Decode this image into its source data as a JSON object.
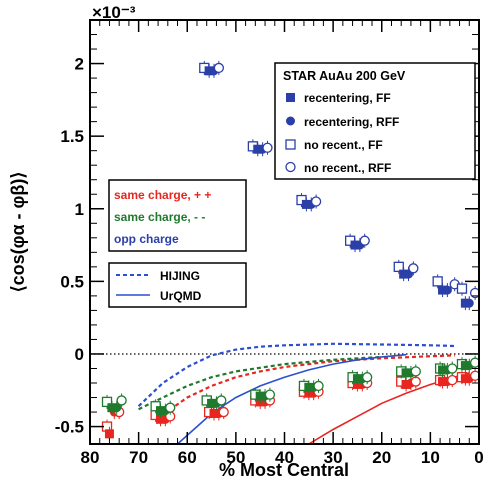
{
  "chart_data": {
    "type": "scatter",
    "title": "",
    "xlabel": "% Most Central",
    "ylabel": "⟨cos(φα - φβ)⟩",
    "y_multiplier": "×10⁻³",
    "xlim": [
      80,
      0
    ],
    "ylim": [
      -0.62,
      2.3
    ],
    "x_ticks": [
      80,
      70,
      60,
      50,
      40,
      30,
      20,
      10,
      0
    ],
    "y_ticks": [
      -0.5,
      0,
      0.5,
      1,
      1.5,
      2
    ],
    "x_tick_labels": [
      "80",
      "70",
      "60",
      "50",
      "40",
      "30",
      "20",
      "10",
      "0"
    ],
    "y_tick_labels": [
      "-0.5",
      "0",
      "0.5",
      "1",
      "1.5",
      "2"
    ],
    "zero_line": true,
    "legend_box_1": {
      "title": "STAR  AuAu 200 GeV",
      "entries": [
        "recentering, FF",
        "recentering, RFF",
        "no recent., FF",
        "no recent., RFF"
      ]
    },
    "legend_box_2": {
      "entries": [
        "same charge, + +",
        "same charge, - -",
        "opp charge"
      ]
    },
    "legend_box_3": {
      "entries": [
        "HIJING",
        "UrQMD"
      ]
    },
    "colors": {
      "same_pp": "#e8261f",
      "same_mm": "#1f7a2e",
      "opp": "#2b3fa8",
      "hijing": "#2b4fd0",
      "urqmd": "#2b4fd0"
    },
    "series": [
      {
        "name": "opp charge",
        "points": [
          {
            "x": 56.5,
            "y": 1.97,
            "marker": "square-open"
          },
          {
            "x": 55.5,
            "y": 1.95,
            "marker": "square-filled"
          },
          {
            "x": 54.5,
            "y": 1.95,
            "marker": "circle-filled"
          },
          {
            "x": 53.5,
            "y": 1.97,
            "marker": "circle-open"
          },
          {
            "x": 46.5,
            "y": 1.43,
            "marker": "square-open"
          },
          {
            "x": 45.5,
            "y": 1.41,
            "marker": "square-filled"
          },
          {
            "x": 44.5,
            "y": 1.41,
            "marker": "circle-filled"
          },
          {
            "x": 43.5,
            "y": 1.42,
            "marker": "circle-open"
          },
          {
            "x": 36.5,
            "y": 1.06,
            "marker": "square-open"
          },
          {
            "x": 35.5,
            "y": 1.03,
            "marker": "square-filled"
          },
          {
            "x": 34.5,
            "y": 1.03,
            "marker": "circle-filled"
          },
          {
            "x": 33.5,
            "y": 1.05,
            "marker": "circle-open"
          },
          {
            "x": 26.5,
            "y": 0.78,
            "marker": "square-open"
          },
          {
            "x": 25.5,
            "y": 0.75,
            "marker": "square-filled"
          },
          {
            "x": 24.5,
            "y": 0.75,
            "marker": "circle-filled"
          },
          {
            "x": 23.5,
            "y": 0.78,
            "marker": "circle-open"
          },
          {
            "x": 16.5,
            "y": 0.6,
            "marker": "square-open"
          },
          {
            "x": 15.5,
            "y": 0.55,
            "marker": "square-filled"
          },
          {
            "x": 14.5,
            "y": 0.55,
            "marker": "circle-filled"
          },
          {
            "x": 13.5,
            "y": 0.59,
            "marker": "circle-open"
          },
          {
            "x": 8.5,
            "y": 0.5,
            "marker": "square-open"
          },
          {
            "x": 7.5,
            "y": 0.44,
            "marker": "square-filled"
          },
          {
            "x": 6.5,
            "y": 0.44,
            "marker": "circle-filled"
          },
          {
            "x": 5.0,
            "y": 0.48,
            "marker": "circle-open"
          },
          {
            "x": 3.5,
            "y": 0.45,
            "marker": "square-open"
          },
          {
            "x": 2.8,
            "y": 0.35,
            "marker": "square-filled"
          },
          {
            "x": 2.0,
            "y": 0.35,
            "marker": "circle-filled"
          },
          {
            "x": 0.8,
            "y": 0.42,
            "marker": "circle-open"
          }
        ]
      },
      {
        "name": "same charge, + +",
        "points": [
          {
            "x": 76.5,
            "y": -0.5,
            "marker": "square-open"
          },
          {
            "x": 76.0,
            "y": -0.55,
            "marker": "square-filled"
          },
          {
            "x": 75.0,
            "y": -0.4,
            "marker": "circle-filled"
          },
          {
            "x": 74.0,
            "y": -0.4,
            "marker": "circle-open"
          },
          {
            "x": 66.5,
            "y": -0.42,
            "marker": "square-open"
          },
          {
            "x": 65.5,
            "y": -0.45,
            "marker": "square-filled"
          },
          {
            "x": 64.5,
            "y": -0.45,
            "marker": "circle-filled"
          },
          {
            "x": 63.5,
            "y": -0.43,
            "marker": "circle-open"
          },
          {
            "x": 55.5,
            "y": -0.4,
            "marker": "square-open"
          },
          {
            "x": 54.5,
            "y": -0.41,
            "marker": "square-filled"
          },
          {
            "x": 53.5,
            "y": -0.41,
            "marker": "circle-filled"
          },
          {
            "x": 52.5,
            "y": -0.4,
            "marker": "circle-open"
          },
          {
            "x": 46.0,
            "y": -0.32,
            "marker": "square-open"
          },
          {
            "x": 45.0,
            "y": -0.33,
            "marker": "square-filled"
          },
          {
            "x": 44.0,
            "y": -0.33,
            "marker": "circle-filled"
          },
          {
            "x": 43.0,
            "y": -0.32,
            "marker": "circle-open"
          },
          {
            "x": 36.0,
            "y": -0.26,
            "marker": "square-open"
          },
          {
            "x": 35.0,
            "y": -0.27,
            "marker": "square-filled"
          },
          {
            "x": 34.0,
            "y": -0.27,
            "marker": "circle-filled"
          },
          {
            "x": 33.0,
            "y": -0.26,
            "marker": "circle-open"
          },
          {
            "x": 26.0,
            "y": -0.2,
            "marker": "square-open"
          },
          {
            "x": 25.0,
            "y": -0.21,
            "marker": "square-filled"
          },
          {
            "x": 24.0,
            "y": -0.21,
            "marker": "circle-filled"
          },
          {
            "x": 23.0,
            "y": -0.2,
            "marker": "circle-open"
          },
          {
            "x": 16.0,
            "y": -0.19,
            "marker": "square-open"
          },
          {
            "x": 15.0,
            "y": -0.21,
            "marker": "square-filled"
          },
          {
            "x": 14.0,
            "y": -0.2,
            "marker": "circle-filled"
          },
          {
            "x": 13.0,
            "y": -0.19,
            "marker": "circle-open"
          },
          {
            "x": 8.0,
            "y": -0.18,
            "marker": "square-open"
          },
          {
            "x": 7.5,
            "y": -0.19,
            "marker": "square-filled"
          },
          {
            "x": 6.5,
            "y": -0.19,
            "marker": "circle-filled"
          },
          {
            "x": 5.5,
            "y": -0.18,
            "marker": "circle-open"
          },
          {
            "x": 3.5,
            "y": -0.16,
            "marker": "square-open"
          },
          {
            "x": 2.8,
            "y": -0.17,
            "marker": "square-filled"
          },
          {
            "x": 2.0,
            "y": -0.17,
            "marker": "circle-filled"
          },
          {
            "x": 0.8,
            "y": -0.15,
            "marker": "circle-open"
          }
        ]
      },
      {
        "name": "same charge, - -",
        "points": [
          {
            "x": 76.5,
            "y": -0.33,
            "marker": "square-open"
          },
          {
            "x": 75.5,
            "y": -0.37,
            "marker": "square-filled"
          },
          {
            "x": 74.5,
            "y": -0.37,
            "marker": "circle-filled"
          },
          {
            "x": 73.5,
            "y": -0.32,
            "marker": "circle-open"
          },
          {
            "x": 66.5,
            "y": -0.36,
            "marker": "square-open"
          },
          {
            "x": 65.5,
            "y": -0.39,
            "marker": "square-filled"
          },
          {
            "x": 64.5,
            "y": -0.39,
            "marker": "circle-filled"
          },
          {
            "x": 63.5,
            "y": -0.37,
            "marker": "circle-open"
          },
          {
            "x": 56.0,
            "y": -0.32,
            "marker": "square-open"
          },
          {
            "x": 55.0,
            "y": -0.34,
            "marker": "square-filled"
          },
          {
            "x": 54.0,
            "y": -0.34,
            "marker": "circle-filled"
          },
          {
            "x": 53.0,
            "y": -0.32,
            "marker": "circle-open"
          },
          {
            "x": 46.0,
            "y": -0.28,
            "marker": "square-open"
          },
          {
            "x": 45.0,
            "y": -0.29,
            "marker": "square-filled"
          },
          {
            "x": 44.0,
            "y": -0.29,
            "marker": "circle-filled"
          },
          {
            "x": 43.0,
            "y": -0.28,
            "marker": "circle-open"
          },
          {
            "x": 36.0,
            "y": -0.22,
            "marker": "square-open"
          },
          {
            "x": 35.0,
            "y": -0.23,
            "marker": "square-filled"
          },
          {
            "x": 34.0,
            "y": -0.23,
            "marker": "circle-filled"
          },
          {
            "x": 33.0,
            "y": -0.22,
            "marker": "circle-open"
          },
          {
            "x": 26.0,
            "y": -0.16,
            "marker": "square-open"
          },
          {
            "x": 25.0,
            "y": -0.17,
            "marker": "square-filled"
          },
          {
            "x": 24.0,
            "y": -0.17,
            "marker": "circle-filled"
          },
          {
            "x": 23.0,
            "y": -0.16,
            "marker": "circle-open"
          },
          {
            "x": 16.0,
            "y": -0.12,
            "marker": "square-open"
          },
          {
            "x": 15.0,
            "y": -0.13,
            "marker": "square-filled"
          },
          {
            "x": 14.0,
            "y": -0.13,
            "marker": "circle-filled"
          },
          {
            "x": 13.0,
            "y": -0.12,
            "marker": "circle-open"
          },
          {
            "x": 8.0,
            "y": -0.1,
            "marker": "square-open"
          },
          {
            "x": 7.5,
            "y": -0.11,
            "marker": "square-filled"
          },
          {
            "x": 6.5,
            "y": -0.11,
            "marker": "circle-filled"
          },
          {
            "x": 5.5,
            "y": -0.1,
            "marker": "circle-open"
          },
          {
            "x": 3.5,
            "y": -0.07,
            "marker": "square-open"
          },
          {
            "x": 2.8,
            "y": -0.08,
            "marker": "square-filled"
          },
          {
            "x": 2.0,
            "y": -0.08,
            "marker": "circle-filled"
          },
          {
            "x": 0.8,
            "y": -0.06,
            "marker": "circle-open"
          }
        ]
      }
    ],
    "curves": [
      {
        "name": "HIJING opp",
        "style": "dashed",
        "color": "#2b4fd0",
        "points": [
          [
            70,
            -0.36
          ],
          [
            65,
            -0.2
          ],
          [
            60,
            -0.09
          ],
          [
            55,
            -0.01
          ],
          [
            50,
            0.03
          ],
          [
            45,
            0.05
          ],
          [
            40,
            0.06
          ],
          [
            30,
            0.07
          ],
          [
            20,
            0.065
          ],
          [
            10,
            0.06
          ],
          [
            5,
            0.055
          ]
        ]
      },
      {
        "name": "HIJING same",
        "style": "dashed",
        "color": "#e8261f",
        "points": [
          [
            66,
            -0.44
          ],
          [
            60,
            -0.3
          ],
          [
            55,
            -0.22
          ],
          [
            50,
            -0.16
          ],
          [
            45,
            -0.12
          ],
          [
            40,
            -0.09
          ],
          [
            30,
            -0.05
          ],
          [
            20,
            -0.03
          ],
          [
            10,
            -0.015
          ],
          [
            5,
            -0.01
          ]
        ]
      },
      {
        "name": "HIJING same green",
        "style": "dashed",
        "color": "#1f7a2e",
        "points": [
          [
            70,
            -0.38
          ],
          [
            65,
            -0.3
          ],
          [
            60,
            -0.22
          ],
          [
            55,
            -0.16
          ],
          [
            50,
            -0.12
          ],
          [
            40,
            -0.07
          ],
          [
            30,
            -0.04
          ],
          [
            20,
            -0.02
          ]
        ]
      },
      {
        "name": "UrQMD opp",
        "style": "solid",
        "color": "#2b4fd0",
        "points": [
          [
            62,
            -0.62
          ],
          [
            58,
            -0.5
          ],
          [
            55,
            -0.41
          ],
          [
            50,
            -0.3
          ],
          [
            45,
            -0.22
          ],
          [
            40,
            -0.16
          ],
          [
            35,
            -0.11
          ],
          [
            30,
            -0.07
          ],
          [
            25,
            -0.04
          ],
          [
            20,
            -0.02
          ],
          [
            15,
            -0.005
          ]
        ]
      },
      {
        "name": "UrQMD same",
        "style": "solid",
        "color": "#e8261f",
        "points": [
          [
            35,
            -0.62
          ],
          [
            30,
            -0.52
          ],
          [
            25,
            -0.43
          ],
          [
            20,
            -0.34
          ],
          [
            15,
            -0.27
          ],
          [
            10,
            -0.21
          ],
          [
            5,
            -0.16
          ],
          [
            2,
            -0.13
          ]
        ]
      }
    ]
  }
}
